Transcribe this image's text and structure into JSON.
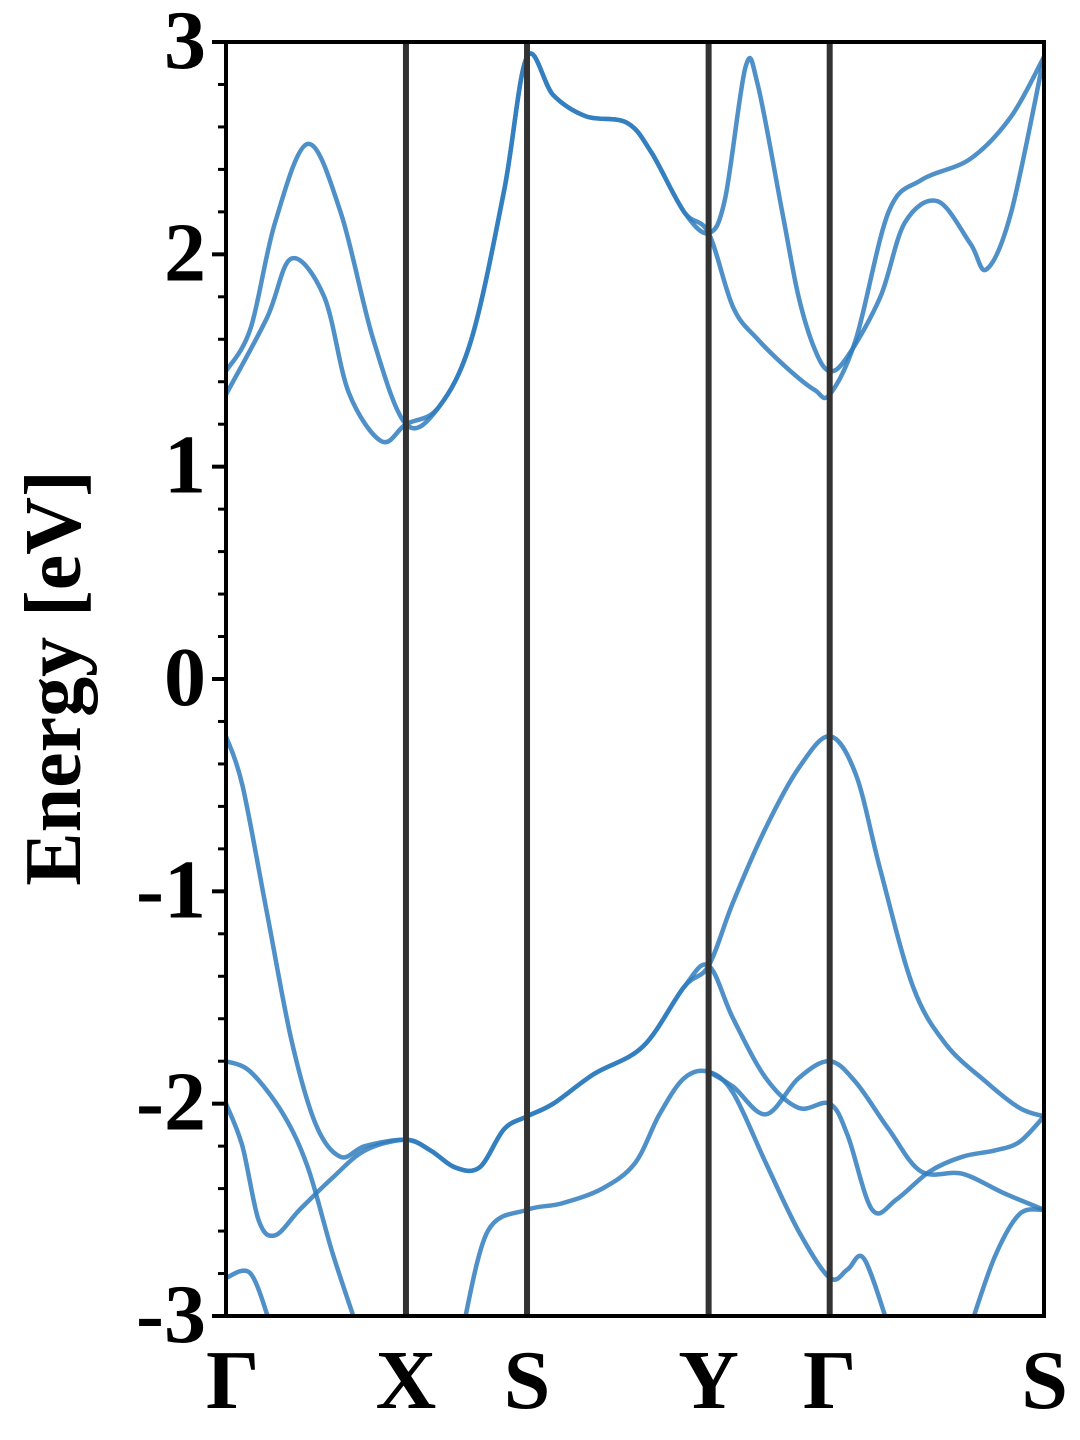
{
  "chart_data": {
    "type": "line",
    "title": "",
    "xlabel": "",
    "ylabel": "Energy [eV]",
    "ylim": [
      -3,
      3
    ],
    "y_ticks": [
      -3,
      -2,
      -1,
      0,
      1,
      2,
      3
    ],
    "y_minor_step": 0.2,
    "grid": false,
    "legend": "none",
    "band_color": "#2f7dbd",
    "kpath_line_color": "#333333",
    "high_symmetry_points": [
      {
        "label": "Γ",
        "x": 0.0
      },
      {
        "label": "X",
        "x": 0.22
      },
      {
        "label": "S",
        "x": 0.368
      },
      {
        "label": "Y",
        "x": 0.59
      },
      {
        "label": "Γ",
        "x": 0.738
      },
      {
        "label": "S",
        "x": 1.0
      }
    ],
    "series": [
      {
        "values": [
          [
            0,
            1.34
          ],
          [
            0.05,
            1.7
          ],
          [
            0.08,
            1.98
          ],
          [
            0.12,
            1.8
          ],
          [
            0.15,
            1.35
          ],
          [
            0.19,
            1.12
          ],
          [
            0.22,
            1.2
          ],
          [
            0.26,
            1.28
          ],
          [
            0.3,
            1.6
          ],
          [
            0.34,
            2.3
          ],
          [
            0.368,
            2.93
          ],
          [
            0.4,
            2.75
          ],
          [
            0.44,
            2.65
          ],
          [
            0.49,
            2.62
          ],
          [
            0.52,
            2.48
          ],
          [
            0.56,
            2.2
          ],
          [
            0.59,
            2.1
          ],
          [
            0.61,
            2.26
          ],
          [
            0.635,
            2.88
          ],
          [
            0.65,
            2.8
          ],
          [
            0.68,
            2.2
          ],
          [
            0.7,
            1.8
          ],
          [
            0.72,
            1.55
          ],
          [
            0.738,
            1.45
          ],
          [
            0.76,
            1.52
          ],
          [
            0.8,
            1.8
          ],
          [
            0.83,
            2.15
          ],
          [
            0.87,
            2.25
          ],
          [
            0.91,
            2.05
          ],
          [
            0.93,
            1.93
          ],
          [
            0.96,
            2.2
          ],
          [
            1.0,
            2.93
          ]
        ]
      },
      {
        "values": [
          [
            0,
            1.45
          ],
          [
            0.03,
            1.65
          ],
          [
            0.06,
            2.15
          ],
          [
            0.1,
            2.52
          ],
          [
            0.14,
            2.2
          ],
          [
            0.18,
            1.6
          ],
          [
            0.22,
            1.2
          ],
          [
            0.26,
            1.28
          ],
          [
            0.3,
            1.6
          ],
          [
            0.34,
            2.3
          ],
          [
            0.368,
            2.93
          ],
          [
            0.4,
            2.75
          ],
          [
            0.44,
            2.65
          ],
          [
            0.49,
            2.62
          ],
          [
            0.52,
            2.48
          ],
          [
            0.56,
            2.2
          ],
          [
            0.59,
            2.1
          ],
          [
            0.62,
            1.75
          ],
          [
            0.65,
            1.6
          ],
          [
            0.69,
            1.45
          ],
          [
            0.72,
            1.36
          ],
          [
            0.738,
            1.34
          ],
          [
            0.77,
            1.6
          ],
          [
            0.81,
            2.2
          ],
          [
            0.85,
            2.35
          ],
          [
            0.91,
            2.45
          ],
          [
            0.96,
            2.65
          ],
          [
            1.0,
            2.93
          ]
        ]
      },
      {
        "values": [
          [
            0,
            -0.27
          ],
          [
            0.02,
            -0.5
          ],
          [
            0.05,
            -1.1
          ],
          [
            0.08,
            -1.7
          ],
          [
            0.11,
            -2.1
          ],
          [
            0.14,
            -2.25
          ],
          [
            0.17,
            -2.2
          ],
          [
            0.22,
            -2.17
          ],
          [
            0.25,
            -2.22
          ],
          [
            0.28,
            -2.3
          ],
          [
            0.31,
            -2.3
          ],
          [
            0.34,
            -2.12
          ],
          [
            0.368,
            -2.06
          ],
          [
            0.4,
            -2.0
          ],
          [
            0.45,
            -1.86
          ],
          [
            0.51,
            -1.73
          ],
          [
            0.56,
            -1.45
          ],
          [
            0.59,
            -1.35
          ],
          [
            0.62,
            -1.05
          ],
          [
            0.66,
            -0.7
          ],
          [
            0.7,
            -0.42
          ],
          [
            0.738,
            -0.27
          ],
          [
            0.77,
            -0.45
          ],
          [
            0.8,
            -0.9
          ],
          [
            0.84,
            -1.45
          ],
          [
            0.88,
            -1.72
          ],
          [
            0.93,
            -1.9
          ],
          [
            0.97,
            -2.02
          ],
          [
            1.0,
            -2.06
          ]
        ]
      },
      {
        "values": [
          [
            0,
            -1.8
          ],
          [
            0.03,
            -1.85
          ],
          [
            0.07,
            -2.05
          ],
          [
            0.1,
            -2.3
          ],
          [
            0.13,
            -2.7
          ],
          [
            0.16,
            -3.05
          ]
        ]
      },
      {
        "values": [
          [
            0,
            -2.0
          ],
          [
            0.02,
            -2.2
          ],
          [
            0.04,
            -2.55
          ],
          [
            0.06,
            -2.62
          ],
          [
            0.09,
            -2.5
          ],
          [
            0.13,
            -2.35
          ],
          [
            0.17,
            -2.22
          ],
          [
            0.22,
            -2.17
          ],
          [
            0.25,
            -2.22
          ],
          [
            0.28,
            -2.3
          ],
          [
            0.31,
            -2.3
          ],
          [
            0.34,
            -2.12
          ],
          [
            0.368,
            -2.06
          ],
          [
            0.4,
            -2.0
          ],
          [
            0.45,
            -1.86
          ],
          [
            0.51,
            -1.73
          ],
          [
            0.56,
            -1.45
          ],
          [
            0.59,
            -1.35
          ],
          [
            0.62,
            -1.6
          ],
          [
            0.66,
            -1.88
          ],
          [
            0.7,
            -2.02
          ],
          [
            0.738,
            -2.0
          ],
          [
            0.76,
            -2.15
          ],
          [
            0.79,
            -2.5
          ],
          [
            0.82,
            -2.45
          ],
          [
            0.86,
            -2.32
          ],
          [
            0.9,
            -2.25
          ],
          [
            0.94,
            -2.22
          ],
          [
            0.97,
            -2.18
          ],
          [
            1.0,
            -2.06
          ]
        ]
      },
      {
        "values": [
          [
            0,
            -2.82
          ],
          [
            0.03,
            -2.8
          ],
          [
            0.055,
            -3.05
          ]
        ]
      },
      {
        "values": [
          [
            0.29,
            -3.05
          ],
          [
            0.32,
            -2.6
          ],
          [
            0.368,
            -2.5
          ],
          [
            0.41,
            -2.47
          ],
          [
            0.46,
            -2.4
          ],
          [
            0.5,
            -2.28
          ],
          [
            0.53,
            -2.05
          ],
          [
            0.56,
            -1.88
          ],
          [
            0.59,
            -1.85
          ],
          [
            0.62,
            -1.95
          ],
          [
            0.66,
            -2.28
          ],
          [
            0.7,
            -2.6
          ],
          [
            0.738,
            -2.82
          ],
          [
            0.76,
            -2.78
          ],
          [
            0.78,
            -2.73
          ],
          [
            0.81,
            -3.05
          ]
        ]
      },
      {
        "values": [
          [
            0.59,
            -1.85
          ],
          [
            0.62,
            -1.92
          ],
          [
            0.66,
            -2.05
          ],
          [
            0.7,
            -1.88
          ],
          [
            0.738,
            -1.8
          ],
          [
            0.77,
            -1.9
          ],
          [
            0.81,
            -2.12
          ],
          [
            0.85,
            -2.32
          ],
          [
            0.9,
            -2.33
          ],
          [
            0.95,
            -2.42
          ],
          [
            1.0,
            -2.5
          ]
        ]
      },
      {
        "values": [
          [
            0.91,
            -3.05
          ],
          [
            0.94,
            -2.72
          ],
          [
            0.97,
            -2.52
          ],
          [
            1.0,
            -2.5
          ]
        ]
      }
    ]
  }
}
